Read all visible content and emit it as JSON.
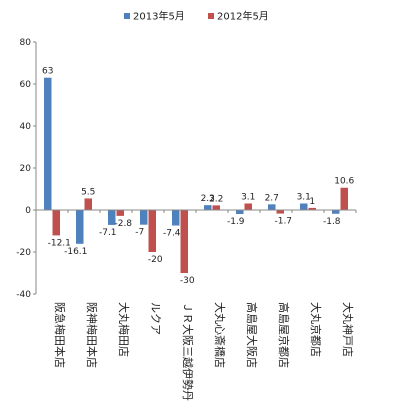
{
  "chart_data": {
    "type": "bar",
    "categories": [
      "阪急梅田本店",
      "阪神梅田本店",
      "大丸梅田店",
      "ルクア",
      "ＪＲ大阪三越伊勢丹",
      "大丸心斎橋店",
      "高島屋大阪店",
      "高島屋京都店",
      "大丸京都店",
      "大丸神戸店"
    ],
    "series": [
      {
        "name": "2013年5月",
        "color": "#4f81bd",
        "values": [
          63,
          -16.1,
          -7.1,
          -7,
          -7.4,
          2.3,
          -1.9,
          2.7,
          3.1,
          -1.8
        ]
      },
      {
        "name": "2012年5月",
        "color": "#c0504d",
        "values": [
          -12.1,
          5.5,
          -2.8,
          -20,
          -30,
          2.2,
          3.1,
          -1.7,
          1,
          10.6
        ]
      }
    ],
    "ylim": [
      -40,
      80
    ],
    "yticks": [
      -40,
      -20,
      0,
      20,
      40,
      60,
      80
    ],
    "legend_position": "top",
    "grid": false
  }
}
